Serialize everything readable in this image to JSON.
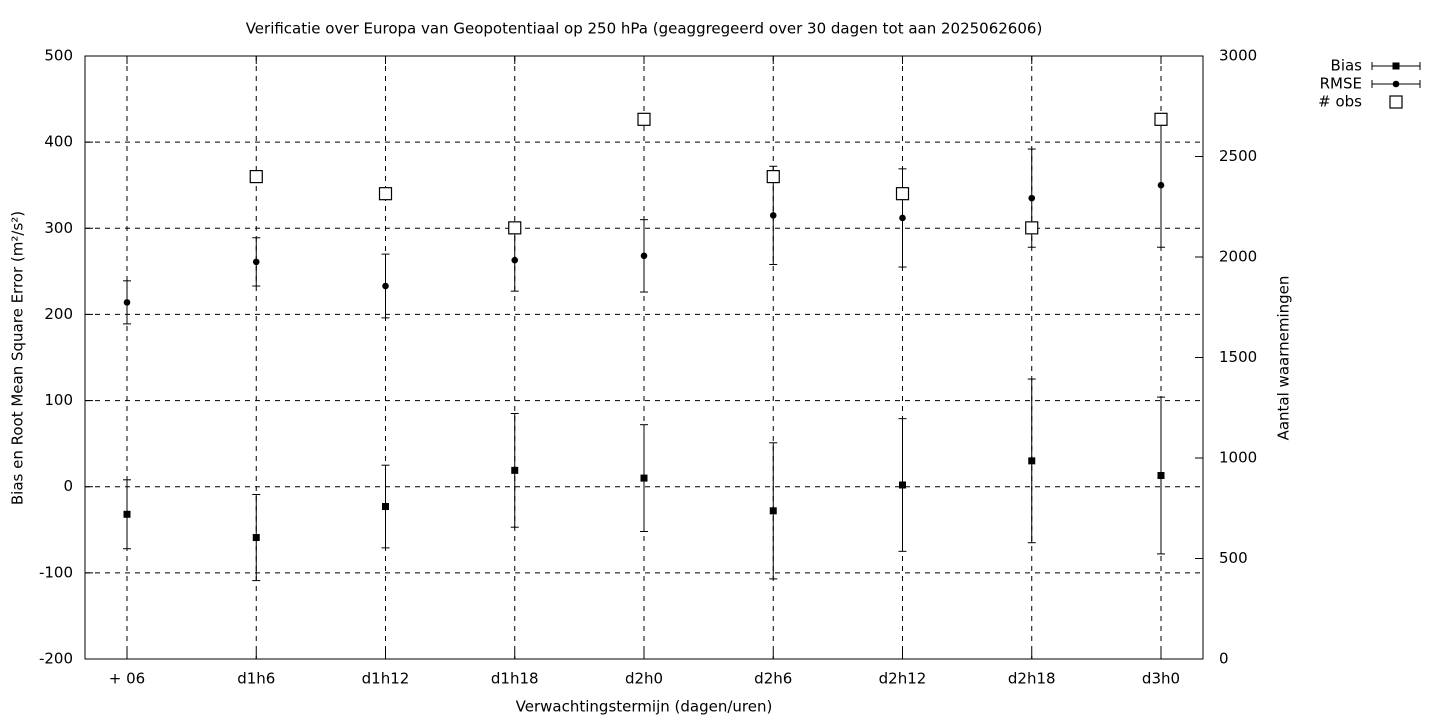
{
  "chart_data": {
    "type": "errorbar",
    "title": "Verificatie over Europa van Geopotentiaal op 250 hPa (geaggregeerd over 30 dagen tot aan 2025062606)",
    "x_label": "Verwachtingstermijn (dagen/uren)",
    "y_label": "Bias en Root Mean Square Error (m²/s²)",
    "y2_label": "Aantal waarnemingen",
    "categories": [
      "+ 06",
      "d1h6",
      "d1h12",
      "d1h18",
      "d2h0",
      "d2h6",
      "d2h12",
      "d2h18",
      "d3h0"
    ],
    "ylim": [
      -200,
      500
    ],
    "yticks": [
      -200,
      -100,
      0,
      100,
      200,
      300,
      400,
      500
    ],
    "y2lim": [
      0,
      3000
    ],
    "y2ticks": [
      0,
      500,
      1000,
      1500,
      2000,
      2500,
      3000
    ],
    "grid": true,
    "legend": "top-right",
    "series": [
      {
        "name": "Bias",
        "color": "#000000",
        "marker": "square",
        "values": [
          -32,
          -59,
          -23,
          19,
          10,
          -28,
          2,
          30,
          13
        ],
        "errors": [
          40,
          50,
          48,
          66,
          62,
          79,
          77,
          95,
          91
        ]
      },
      {
        "name": "RMSE",
        "color": "#000000",
        "marker": "circle",
        "values": [
          214,
          261,
          233,
          263,
          268,
          315,
          312,
          335,
          350
        ],
        "errors": [
          25,
          28,
          37,
          36,
          42,
          57,
          57,
          57,
          72
        ]
      },
      {
        "name": "# obs",
        "color": "#000000",
        "marker": "open-square",
        "axis": "y2",
        "values": [
          null,
          2400,
          2315,
          2145,
          2685,
          2400,
          2315,
          2145,
          2685
        ]
      }
    ]
  }
}
